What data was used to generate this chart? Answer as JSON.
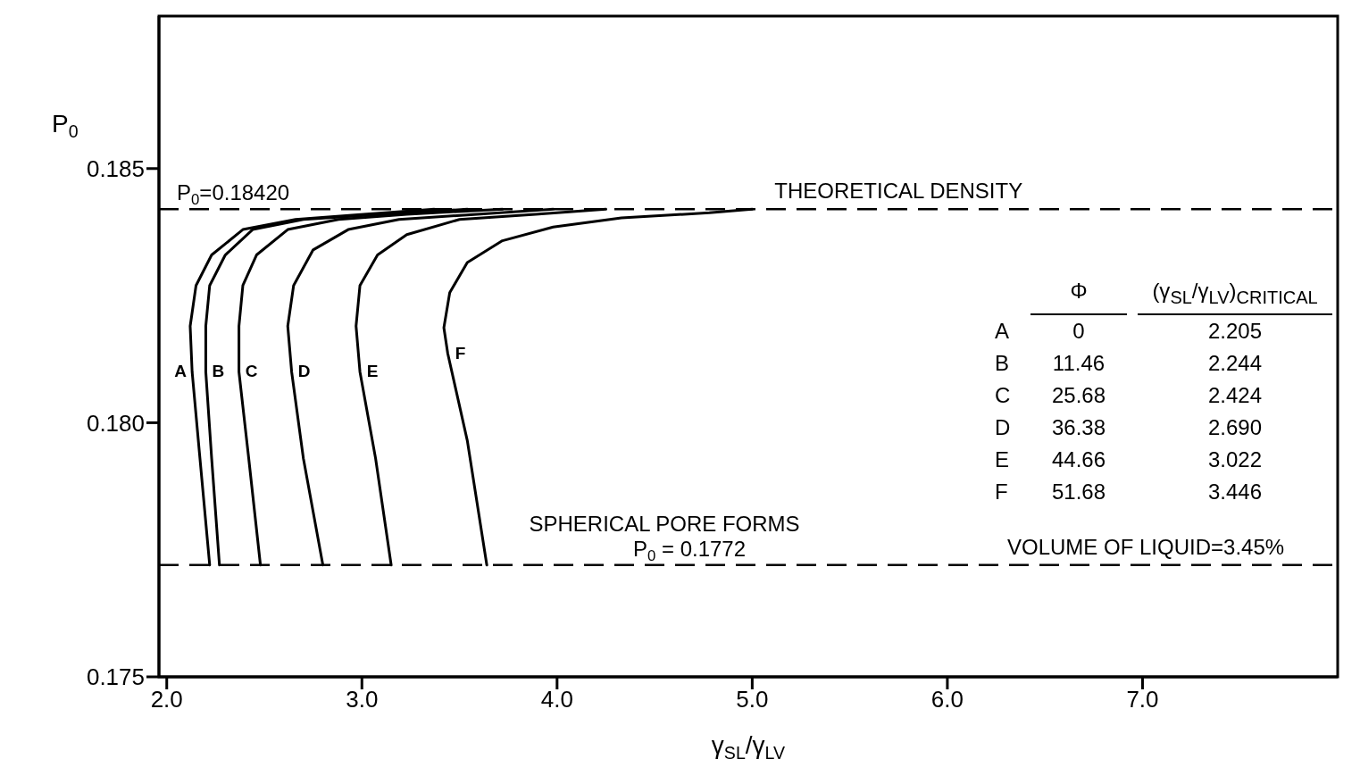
{
  "chart_data": {
    "type": "line",
    "xlabel": "γ$_{SL}$/γ$_{LV}$",
    "ylabel": "P$_{0}$",
    "xlim": [
      1.96,
      8.0
    ],
    "ylim": [
      0.175,
      0.188
    ],
    "xticks": [
      {
        "value": 2,
        "label": "2.0"
      },
      {
        "value": 3,
        "label": "3.0"
      },
      {
        "value": 4,
        "label": "4.0"
      },
      {
        "value": 5,
        "label": "5.0"
      },
      {
        "value": 6,
        "label": "6.0"
      },
      {
        "value": 7,
        "label": "7.0"
      }
    ],
    "yticks": [
      {
        "value": 0.175,
        "label": "0.175"
      },
      {
        "value": 0.18,
        "label": "0.180"
      },
      {
        "value": 0.185,
        "label": "0.185"
      }
    ],
    "marker": "none",
    "line_style": "solid",
    "series": [
      {
        "name": "A",
        "color": "#000000",
        "x": [
          2.22,
          2.17,
          2.13,
          2.12,
          2.15,
          2.23,
          2.39,
          2.66,
          3.01,
          3.37
        ],
        "values": [
          0.1772,
          0.1793,
          0.181,
          0.1819,
          0.1827,
          0.1833,
          0.1838,
          0.184,
          0.1841,
          0.1842
        ]
      },
      {
        "name": "B",
        "color": "#000000",
        "x": [
          2.27,
          2.23,
          2.2,
          2.2,
          2.22,
          2.3,
          2.44,
          2.7,
          3.1,
          3.54
        ],
        "values": [
          0.1772,
          0.1793,
          0.181,
          0.1819,
          0.1827,
          0.1833,
          0.1838,
          0.184,
          0.1841,
          0.1842
        ]
      },
      {
        "name": "C",
        "color": "#000000",
        "x": [
          2.48,
          2.42,
          2.37,
          2.37,
          2.39,
          2.46,
          2.62,
          2.88,
          3.23,
          3.72
        ],
        "values": [
          0.1772,
          0.1793,
          0.181,
          0.1819,
          0.1827,
          0.1833,
          0.1838,
          0.184,
          0.1841,
          0.1842
        ]
      },
      {
        "name": "D",
        "color": "#000000",
        "x": [
          2.8,
          2.7,
          2.64,
          2.62,
          2.65,
          2.75,
          2.93,
          3.19,
          3.59,
          3.98
        ],
        "values": [
          0.1772,
          0.1793,
          0.181,
          0.1819,
          0.1827,
          0.1834,
          0.1838,
          0.184,
          0.1841,
          0.1842
        ]
      },
      {
        "name": "E",
        "color": "#000000",
        "x": [
          3.15,
          3.07,
          2.99,
          2.97,
          2.99,
          3.08,
          3.23,
          3.5,
          3.89,
          4.25
        ],
        "values": [
          0.1772,
          0.1793,
          0.181,
          0.1819,
          0.1827,
          0.1833,
          0.1837,
          0.184,
          0.1841,
          0.1842
        ]
      },
      {
        "name": "F",
        "color": "#000000",
        "x": [
          3.64,
          3.54,
          3.44,
          3.42,
          3.45,
          3.54,
          3.72,
          3.98,
          4.33,
          4.78,
          5.0
        ],
        "values": [
          0.1772,
          0.17965,
          0.18136,
          0.18187,
          0.18256,
          0.18315,
          0.18358,
          0.18385,
          0.18403,
          0.18413,
          0.1842
        ]
      }
    ],
    "ref_lines": [
      {
        "axis": "y",
        "value": 0.1842,
        "label": "P$_{0}$=0.18420",
        "line_style": "dashed",
        "color": "#000000"
      },
      {
        "axis": "y",
        "value": 0.1772,
        "label": "P$_{0}$ = 0.1772",
        "line_style": "dashed",
        "color": "#000000"
      }
    ],
    "annotations": [
      {
        "text": "THEORETICAL DENSITY",
        "x": 5.75,
        "y": 0.1842
      },
      {
        "text": "SPHERICAL PORE FORMS",
        "x": 4.55,
        "y": 0.1772
      },
      "\tΦ\t(γ$_{SL}$/γ$_{LV}$)$_{CRITICAL}$",
      "A\t0\t2.205",
      "B\t11.46\t2.244",
      "C\t25.68\t2.424",
      "D\t36.38\t2.690",
      "E\t44.66\t3.022",
      "F\t51.68\t3.446",
      "VOLUME OF LIQUID=3.45%"
    ]
  }
}
